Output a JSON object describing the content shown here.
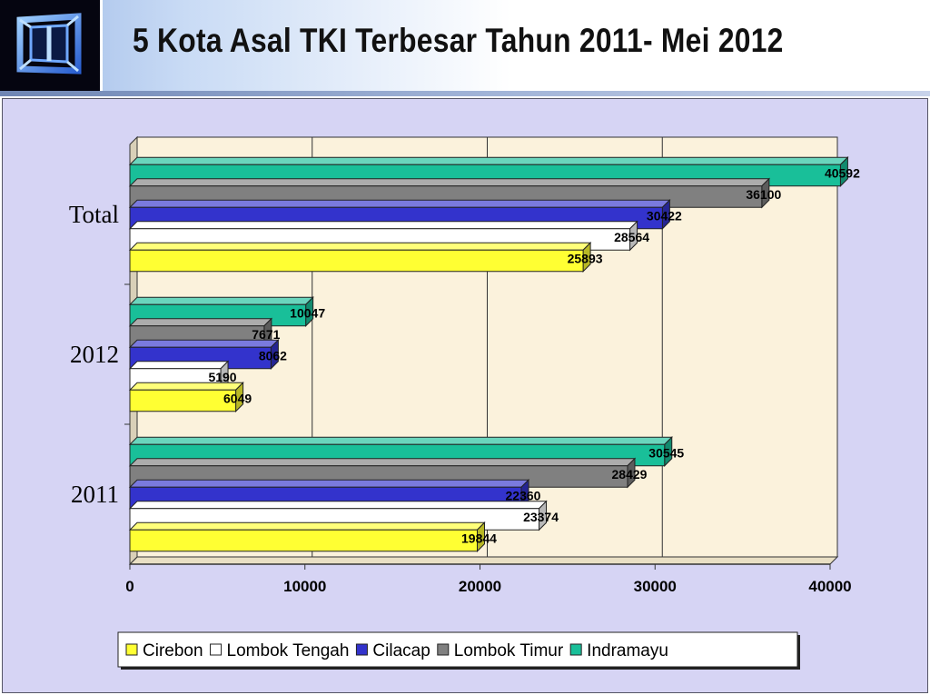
{
  "page": {
    "title": "5 Kota Asal TKI Terbesar Tahun 2011- Mei 2012",
    "logo_icon": "window-cube-logo-icon"
  },
  "colors": {
    "Cirebon": "#ffff33",
    "Lombok Tengah": "#ffffff",
    "Cilacap": "#3333cc",
    "Lombok Timur": "#808080",
    "Indramayu": "#19bf99",
    "plot_bg": "#fbf2dc",
    "panel_bg": "#d6d4f4"
  },
  "chart_data": {
    "type": "bar",
    "orientation": "horizontal",
    "style": "3d",
    "categories": [
      "Total",
      "2012",
      "2011"
    ],
    "series": [
      {
        "name": "Cirebon",
        "values": [
          25893,
          6049,
          19844
        ]
      },
      {
        "name": "Lombok Tengah",
        "values": [
          28564,
          5190,
          23374
        ]
      },
      {
        "name": "Cilacap",
        "values": [
          30422,
          8062,
          22360
        ]
      },
      {
        "name": "Lombok Timur",
        "values": [
          36100,
          7671,
          28429
        ]
      },
      {
        "name": "Indramayu",
        "values": [
          40592,
          10047,
          30545
        ]
      }
    ],
    "data_labels": [
      [
        "25893",
        "6049",
        "19844"
      ],
      [
        "28564",
        "5190",
        "23374"
      ],
      [
        "30422",
        "8062",
        "22360"
      ],
      [
        "36100",
        "7671",
        "28429"
      ],
      [
        "40592",
        "10047",
        "30545"
      ]
    ],
    "xlim": [
      0,
      40000
    ],
    "xticks": [
      "0",
      "10000",
      "20000",
      "30000",
      "40000"
    ],
    "grid": "vertical",
    "legend": "bottom"
  }
}
